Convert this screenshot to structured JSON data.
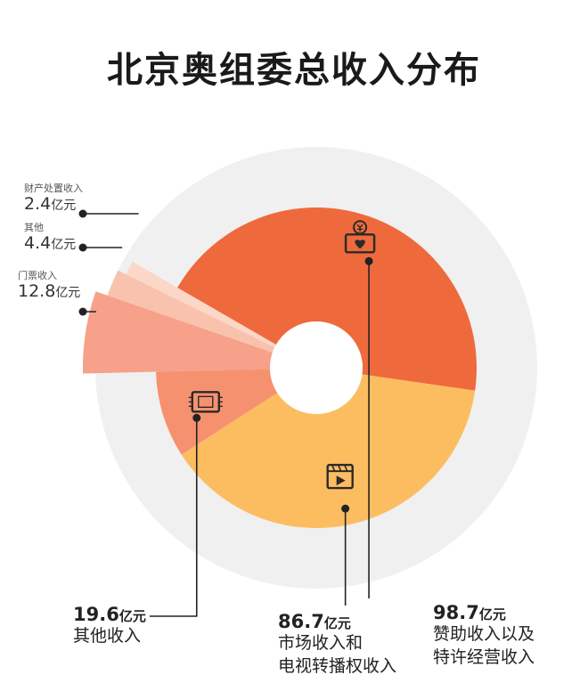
{
  "title": "北京奥组委总收入分布",
  "colors": {
    "sponsorship": "#ee6a3d",
    "broadcast": "#fcbd61",
    "other": "#f69170",
    "tickets": "#f7a08a",
    "misc": "#f9c2ad",
    "asset": "#fbd7c8",
    "ring_bg": "#f0f0f0",
    "line": "#222222"
  },
  "chart_data": {
    "type": "pie",
    "title": "北京奥组委总收入分布",
    "unit": "亿元",
    "slices": [
      {
        "key": "sponsorship",
        "value": "98.7",
        "unit": "亿元",
        "label_lines": [
          "赞助收入以及",
          "特许经营收入"
        ],
        "icon": "heart-yuan-icon"
      },
      {
        "key": "broadcast",
        "value": "86.7",
        "unit": "亿元",
        "label_lines": [
          "市场收入和",
          "电视转播权收入"
        ],
        "icon": "video-play-icon"
      },
      {
        "key": "other",
        "value": "19.6",
        "unit": "亿元",
        "label_lines": [
          "其他收入"
        ],
        "icon": "ticket-icon"
      },
      {
        "key": "tickets",
        "value": "12.8",
        "unit": "亿元",
        "label_lines": [
          "门票收入"
        ]
      },
      {
        "key": "misc",
        "value": "4.4",
        "unit": "亿元",
        "label_lines": [
          "其他"
        ]
      },
      {
        "key": "asset",
        "value": "2.4",
        "unit": "亿元",
        "label_lines": [
          "财产处置收入"
        ]
      }
    ]
  }
}
